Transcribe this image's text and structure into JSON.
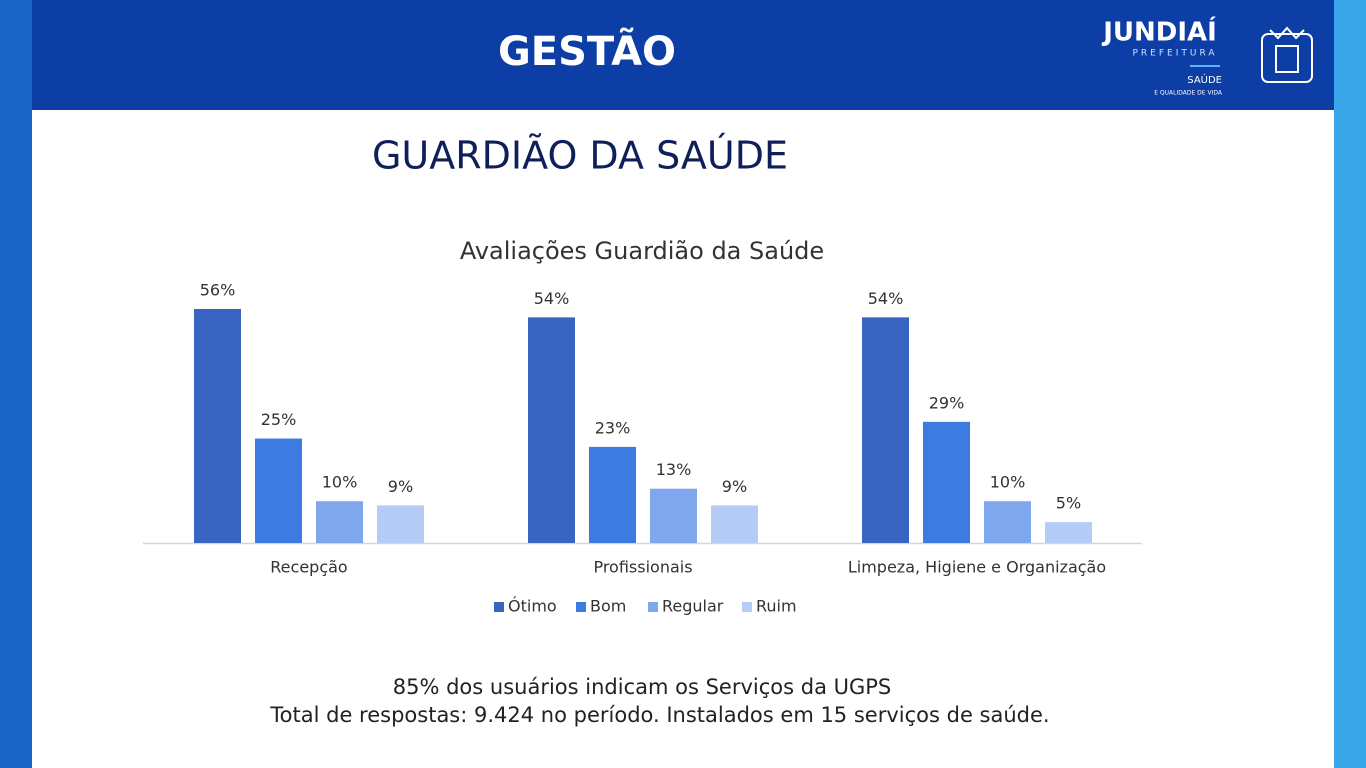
{
  "header": {
    "title": "GESTÃO"
  },
  "logo": {
    "name": "JUNDIAÍ",
    "subtitle": "PREFEITURA",
    "dept": "SAÚDE",
    "dept_sub": "E QUALIDADE DE VIDA"
  },
  "slide_title": "GUARDIÃO DA SAÚDE",
  "chart_data": {
    "type": "bar",
    "title": "Avaliações Guardião da Saúde",
    "categories": [
      "Recepção",
      "Profissionais",
      "Limpeza, Higiene e Organização"
    ],
    "series": [
      {
        "name": "Ótimo",
        "color": "#3a64c2",
        "values": [
          56,
          54,
          54
        ],
        "value_labels": [
          "56%",
          "54%",
          "54%"
        ]
      },
      {
        "name": "Bom",
        "color": "#3d7be0",
        "values": [
          25,
          23,
          29
        ],
        "value_labels": [
          "25%",
          "23%",
          "29%"
        ]
      },
      {
        "name": "Regular",
        "color": "#7ea7ee",
        "values": [
          10,
          13,
          10
        ],
        "value_labels": [
          "10%",
          "13%",
          "10%"
        ]
      },
      {
        "name": "Ruim",
        "color": "#b5cdf6",
        "values": [
          9,
          9,
          5
        ],
        "value_labels": [
          "9%",
          "9%",
          "5%"
        ]
      }
    ],
    "legend": "bottom"
  },
  "footer": {
    "lines": [
      "85% dos usuários indicam os Serviços da UGPS",
      "Total de respostas: 9.424 no período. Instalados em 15 serviços de saúde."
    ]
  }
}
